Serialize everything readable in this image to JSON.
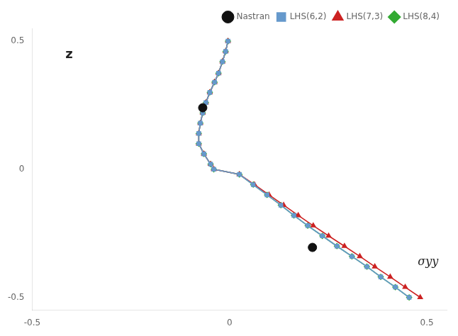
{
  "chart_data": {
    "type": "scatter",
    "annotations": [
      {
        "text": "z"
      },
      {
        "text": "σyy"
      }
    ],
    "series": [
      {
        "name": "Nastran",
        "type": "scatter",
        "marker": "circle",
        "color": "#111111",
        "x": [
          -0.068,
          0.21
        ],
        "values": [
          0.24,
          -0.305
        ]
      },
      {
        "name": "LHS(6,2)",
        "type": "line",
        "marker": "square",
        "color": "#6699cc",
        "x": [
          -0.004,
          -0.01,
          -0.018,
          -0.028,
          -0.038,
          -0.05,
          -0.06,
          -0.068,
          -0.074,
          -0.078,
          -0.078,
          -0.065,
          -0.048,
          -0.04,
          0.025,
          0.06,
          0.095,
          0.13,
          0.163,
          0.198,
          0.235,
          0.272,
          0.31,
          0.348,
          0.383,
          0.42,
          0.455
        ],
        "values": [
          0.5,
          0.46,
          0.42,
          0.375,
          0.34,
          0.3,
          0.26,
          0.22,
          0.18,
          0.14,
          0.1,
          0.06,
          0.02,
          0.0,
          -0.02,
          -0.06,
          -0.1,
          -0.14,
          -0.18,
          -0.22,
          -0.26,
          -0.3,
          -0.34,
          -0.38,
          -0.42,
          -0.46,
          -0.5
        ]
      },
      {
        "name": "LHS(7,3)",
        "type": "line",
        "marker": "triangle",
        "color": "#cc2222",
        "x": [
          -0.004,
          -0.01,
          -0.018,
          -0.028,
          -0.038,
          -0.05,
          -0.06,
          -0.068,
          -0.074,
          -0.078,
          -0.078,
          -0.065,
          -0.048,
          -0.04,
          0.025,
          0.063,
          0.1,
          0.137,
          0.174,
          0.212,
          0.251,
          0.291,
          0.33,
          0.368,
          0.407,
          0.445,
          0.483
        ],
        "values": [
          0.5,
          0.46,
          0.42,
          0.375,
          0.34,
          0.3,
          0.26,
          0.22,
          0.18,
          0.14,
          0.1,
          0.06,
          0.02,
          0.0,
          -0.02,
          -0.06,
          -0.1,
          -0.14,
          -0.18,
          -0.22,
          -0.26,
          -0.3,
          -0.34,
          -0.38,
          -0.42,
          -0.46,
          -0.5
        ]
      },
      {
        "name": "LHS(8,4)",
        "type": "line",
        "marker": "diamond",
        "color": "#33aa33",
        "x": [
          -0.004,
          -0.01,
          -0.018,
          -0.028,
          -0.038,
          -0.05,
          -0.06,
          -0.068,
          -0.074,
          -0.078,
          -0.078,
          -0.065,
          -0.048,
          -0.04,
          0.025,
          0.06,
          0.095,
          0.13,
          0.163,
          0.198,
          0.235,
          0.272,
          0.31,
          0.348,
          0.383,
          0.42,
          0.455
        ],
        "values": [
          0.5,
          0.46,
          0.42,
          0.375,
          0.34,
          0.3,
          0.26,
          0.22,
          0.18,
          0.14,
          0.1,
          0.06,
          0.02,
          0.0,
          -0.02,
          -0.06,
          -0.1,
          -0.14,
          -0.18,
          -0.22,
          -0.26,
          -0.3,
          -0.34,
          -0.38,
          -0.42,
          -0.46,
          -0.5
        ]
      }
    ],
    "xlim": [
      -0.5,
      0.55
    ],
    "ylim": [
      -0.55,
      0.55
    ],
    "xticks": [
      -0.5,
      0,
      0.5
    ],
    "yticks": [
      -0.5,
      0,
      0.5
    ],
    "grid": false,
    "legend": "upper right"
  }
}
